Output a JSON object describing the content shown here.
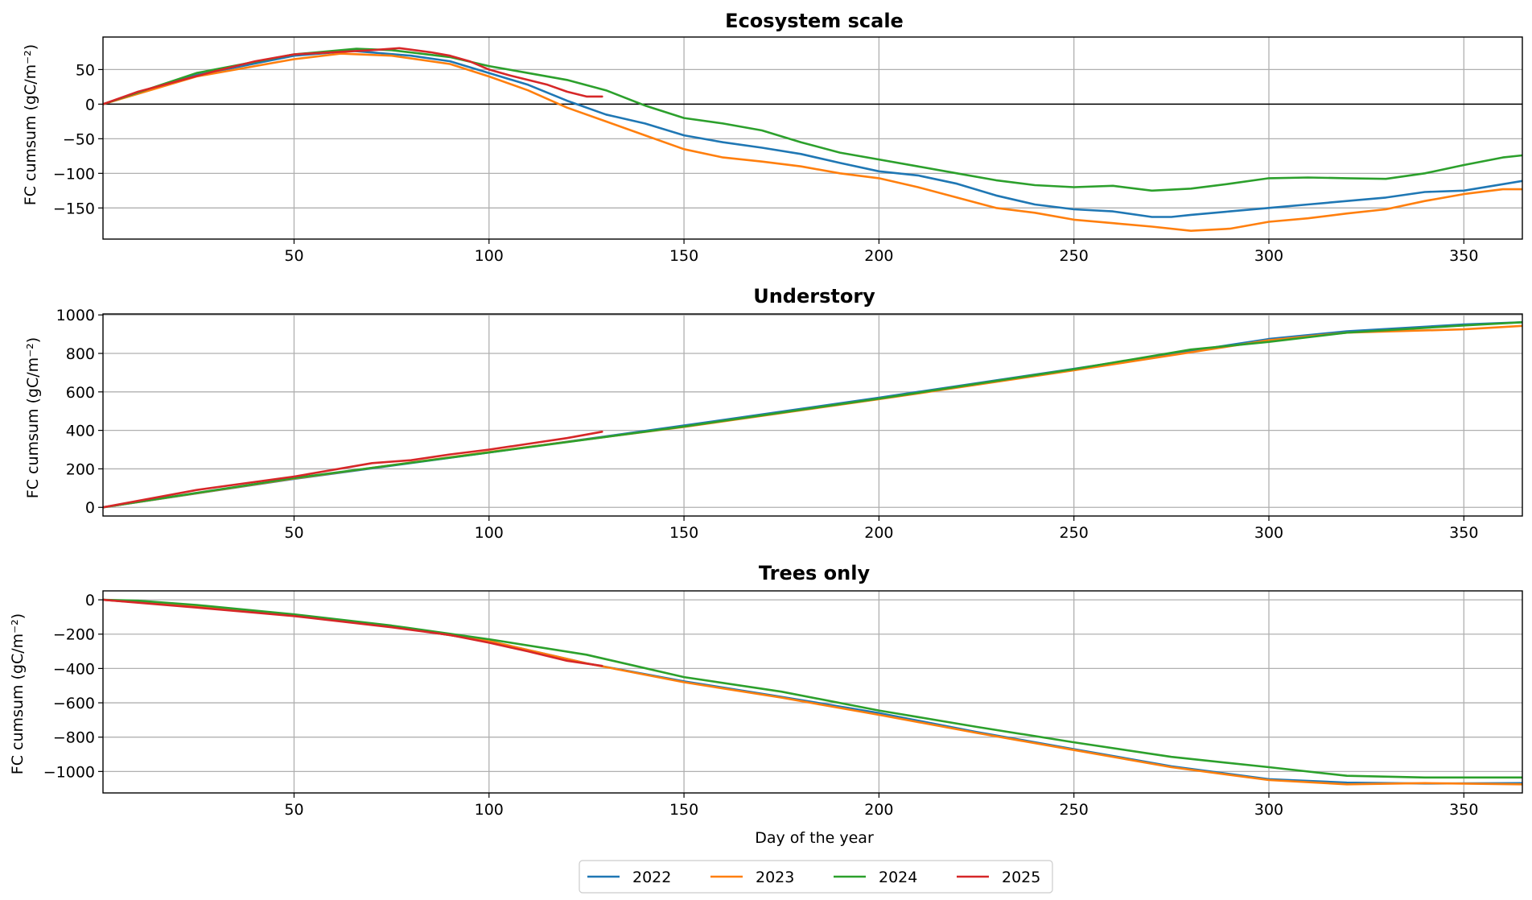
{
  "chart_data": [
    {
      "type": "line",
      "title": "Ecosystem scale",
      "xlabel": "",
      "ylabel": "FC cumsum (gC/m⁻²)",
      "xlim": [
        1,
        365
      ],
      "ylim": [
        -195,
        97
      ],
      "xticks": [
        50,
        100,
        150,
        200,
        250,
        300,
        350
      ],
      "yticks": [
        50,
        0,
        -50,
        -100,
        -150
      ],
      "ytick_labels": [
        "50",
        "0",
        "−50",
        "−100",
        "−150"
      ],
      "zero_line": true,
      "grid": true,
      "series": [
        {
          "name": "2022",
          "x": [
            1,
            25,
            50,
            65,
            80,
            90,
            100,
            110,
            120,
            130,
            140,
            150,
            160,
            170,
            180,
            190,
            200,
            210,
            220,
            230,
            240,
            250,
            260,
            270,
            275,
            280,
            290,
            300,
            310,
            320,
            330,
            340,
            350,
            365
          ],
          "y": [
            0,
            42,
            70,
            77,
            70,
            62,
            45,
            28,
            5,
            -15,
            -28,
            -45,
            -55,
            -63,
            -72,
            -85,
            -97,
            -103,
            -115,
            -132,
            -145,
            -152,
            -155,
            -163,
            -163,
            -160,
            -155,
            -150,
            -145,
            -140,
            -135,
            -127,
            -125,
            -111
          ]
        },
        {
          "name": "2023",
          "x": [
            1,
            25,
            50,
            62,
            75,
            90,
            100,
            110,
            120,
            130,
            140,
            150,
            160,
            170,
            180,
            190,
            200,
            210,
            220,
            230,
            240,
            250,
            260,
            270,
            280,
            290,
            300,
            310,
            320,
            330,
            340,
            350,
            360,
            365
          ],
          "y": [
            0,
            40,
            65,
            73,
            70,
            58,
            40,
            20,
            -5,
            -25,
            -45,
            -65,
            -77,
            -83,
            -90,
            -100,
            -107,
            -120,
            -135,
            -150,
            -157,
            -167,
            -172,
            -177,
            -183,
            -180,
            -170,
            -165,
            -158,
            -152,
            -140,
            -130,
            -123,
            -123
          ]
        },
        {
          "name": "2024",
          "x": [
            1,
            25,
            50,
            66,
            75,
            90,
            100,
            110,
            120,
            130,
            140,
            150,
            160,
            170,
            180,
            190,
            200,
            210,
            220,
            230,
            240,
            250,
            260,
            270,
            280,
            290,
            300,
            310,
            320,
            330,
            340,
            350,
            360,
            365
          ],
          "y": [
            0,
            45,
            72,
            80,
            78,
            68,
            55,
            45,
            35,
            20,
            -2,
            -20,
            -28,
            -38,
            -55,
            -70,
            -80,
            -90,
            -100,
            -110,
            -117,
            -120,
            -118,
            -125,
            -122,
            -115,
            -107,
            -106,
            -107,
            -108,
            -100,
            -88,
            -77,
            -74
          ]
        },
        {
          "name": "2025",
          "x": [
            1,
            10,
            20,
            30,
            40,
            50,
            60,
            70,
            77,
            85,
            90,
            95,
            100,
            105,
            110,
            115,
            120,
            125,
            129
          ],
          "y": [
            0,
            18,
            33,
            48,
            62,
            72,
            75,
            78,
            81,
            75,
            70,
            62,
            50,
            42,
            35,
            28,
            18,
            11,
            11
          ]
        }
      ]
    },
    {
      "type": "line",
      "title": "Understory",
      "xlabel": "",
      "ylabel": "FC cumsum (gC/m⁻²)",
      "xlim": [
        1,
        365
      ],
      "ylim": [
        -45,
        1005
      ],
      "xticks": [
        50,
        100,
        150,
        200,
        250,
        300,
        350
      ],
      "yticks": [
        1000,
        800,
        600,
        400,
        200,
        0
      ],
      "ytick_labels": [
        "1000",
        "800",
        "600",
        "400",
        "200",
        "0"
      ],
      "zero_line": false,
      "grid": true,
      "series": [
        {
          "name": "2022",
          "x": [
            1,
            50,
            100,
            150,
            200,
            250,
            300,
            320,
            350,
            365
          ],
          "y": [
            0,
            148,
            285,
            425,
            570,
            720,
            875,
            915,
            950,
            962
          ]
        },
        {
          "name": "2023",
          "x": [
            1,
            50,
            100,
            150,
            200,
            250,
            300,
            320,
            350,
            365
          ],
          "y": [
            0,
            150,
            288,
            418,
            562,
            712,
            868,
            908,
            925,
            943
          ]
        },
        {
          "name": "2024",
          "x": [
            1,
            25,
            50,
            100,
            150,
            200,
            250,
            280,
            300,
            320,
            350,
            365
          ],
          "y": [
            0,
            75,
            152,
            285,
            420,
            565,
            718,
            820,
            860,
            908,
            945,
            962
          ]
        },
        {
          "name": "2025",
          "x": [
            1,
            25,
            50,
            70,
            80,
            90,
            100,
            110,
            120,
            129
          ],
          "y": [
            0,
            90,
            160,
            230,
            245,
            275,
            300,
            330,
            360,
            393
          ]
        }
      ]
    },
    {
      "type": "line",
      "title": "Trees only",
      "xlabel": "Day of the year",
      "ylabel": "FC cumsum (gC/m⁻²)",
      "xlim": [
        1,
        365
      ],
      "ylim": [
        -1125,
        52
      ],
      "xticks": [
        50,
        100,
        150,
        200,
        250,
        300,
        350
      ],
      "yticks": [
        0,
        -200,
        -400,
        -600,
        -800,
        -1000
      ],
      "ytick_labels": [
        "0",
        "−200",
        "−400",
        "−600",
        "−800",
        "−1000"
      ],
      "zero_line": false,
      "grid": true,
      "series": [
        {
          "name": "2022",
          "x": [
            1,
            25,
            50,
            75,
            100,
            125,
            150,
            175,
            200,
            225,
            250,
            275,
            300,
            320,
            340,
            365
          ],
          "y": [
            0,
            -40,
            -90,
            -155,
            -240,
            -370,
            -475,
            -565,
            -660,
            -770,
            -870,
            -970,
            -1045,
            -1065,
            -1070,
            -1068
          ]
        },
        {
          "name": "2023",
          "x": [
            1,
            25,
            50,
            75,
            100,
            125,
            150,
            175,
            200,
            225,
            250,
            275,
            300,
            320,
            340,
            365
          ],
          "y": [
            0,
            -40,
            -90,
            -155,
            -240,
            -370,
            -480,
            -570,
            -670,
            -775,
            -875,
            -975,
            -1050,
            -1075,
            -1068,
            -1075
          ]
        },
        {
          "name": "2024",
          "x": [
            1,
            10,
            25,
            50,
            75,
            100,
            125,
            150,
            175,
            200,
            225,
            250,
            275,
            300,
            320,
            340,
            365
          ],
          "y": [
            0,
            -5,
            -30,
            -85,
            -150,
            -230,
            -320,
            -450,
            -535,
            -645,
            -740,
            -830,
            -915,
            -975,
            -1025,
            -1035,
            -1035
          ]
        },
        {
          "name": "2025",
          "x": [
            1,
            25,
            50,
            75,
            90,
            100,
            110,
            120,
            129
          ],
          "y": [
            0,
            -45,
            -95,
            -160,
            -205,
            -250,
            -300,
            -355,
            -385
          ]
        }
      ]
    }
  ],
  "legend": {
    "placement": "bottom-center",
    "entries": [
      {
        "name": "2022",
        "color": "#1f77b4"
      },
      {
        "name": "2023",
        "color": "#ff7f0e"
      },
      {
        "name": "2024",
        "color": "#2ca02c"
      },
      {
        "name": "2025",
        "color": "#d62728"
      }
    ]
  },
  "colors": {
    "2022": "#1f77b4",
    "2023": "#ff7f0e",
    "2024": "#2ca02c",
    "2025": "#d62728",
    "grid": "#b0b0b0",
    "zero_line": "#000000"
  }
}
